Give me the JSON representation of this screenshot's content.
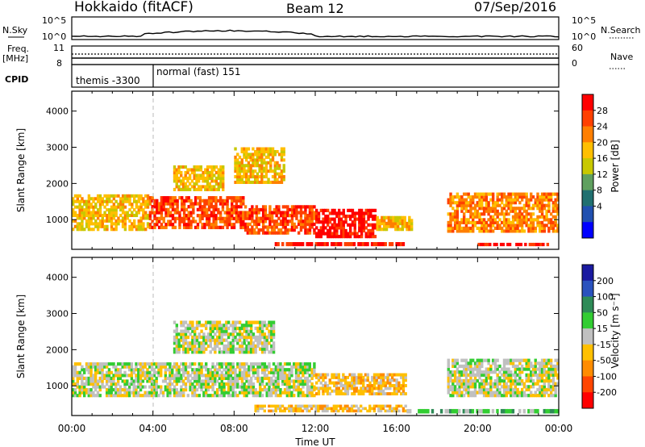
{
  "header": {
    "station": "Hokkaido (fitACF)",
    "beam": "Beam 12",
    "date": "07/Sep/2016"
  },
  "upper_panels": {
    "nsky_label": "N.Sky",
    "nsearch_label": "N.Search",
    "noise_ticks": [
      "10^5",
      "10^0"
    ],
    "freq_label_top": "Freq.",
    "freq_label_bottom": "[MHz]",
    "freq_ticks": [
      "11",
      "8"
    ],
    "nave_label": "Nave",
    "nave_ticks": [
      "60",
      "0"
    ],
    "cpid_label": "CPID",
    "cpid_segments": [
      "themis -3300",
      "normal (fast) 151"
    ]
  },
  "colorbars": {
    "power": {
      "label": "Power [dB]",
      "ticks": [
        "28",
        "24",
        "20",
        "16",
        "12",
        "8",
        "4"
      ],
      "colors": [
        "#ff0000",
        "#ff4000",
        "#ff7f00",
        "#ffbf00",
        "#c8c800",
        "#5fa05f",
        "#207070",
        "#2050b0",
        "#0000ff"
      ]
    },
    "velocity": {
      "label": "Velocity [m s⁻¹]",
      "ticks": [
        "200",
        "100",
        "50",
        "15",
        "-15",
        "-50",
        "-100",
        "-200"
      ],
      "colors": [
        "#1a1aa0",
        "#2a52be",
        "#2e8b57",
        "#32cd32",
        "#c0c0c0",
        "#ffc000",
        "#ff8c00",
        "#ff4500",
        "#ff0000"
      ]
    }
  },
  "chart_data": [
    {
      "type": "heatmap",
      "panel": "power",
      "ylabel": "Slant Range [km]",
      "yticks": [
        "1000",
        "2000",
        "3000",
        "4000"
      ],
      "ylim": [
        180,
        4550
      ],
      "xlim": [
        "00:00",
        "24:00"
      ],
      "bands": [
        {
          "t0": 0,
          "t1": 3.8,
          "r0": 700,
          "r1": 1700,
          "level": 5
        },
        {
          "t0": 3.8,
          "t1": 8.5,
          "r0": 750,
          "r1": 1650,
          "level": 7
        },
        {
          "t0": 8.5,
          "t1": 12.0,
          "r0": 600,
          "r1": 1400,
          "level": 7
        },
        {
          "t0": 12.0,
          "t1": 15.0,
          "r0": 500,
          "r1": 1300,
          "level": 8
        },
        {
          "t0": 15.0,
          "t1": 16.8,
          "r0": 700,
          "r1": 1100,
          "level": 5
        },
        {
          "t0": 18.5,
          "t1": 24.0,
          "r0": 650,
          "r1": 1750,
          "level": 6
        },
        {
          "t0": 5.0,
          "t1": 7.5,
          "r0": 1800,
          "r1": 2500,
          "level": 5
        },
        {
          "t0": 8.0,
          "t1": 10.5,
          "r0": 2000,
          "r1": 3000,
          "level": 5
        },
        {
          "t0": 10.0,
          "t1": 16.5,
          "r0": 280,
          "r1": 380,
          "level": 8
        },
        {
          "t0": 20.0,
          "t1": 23.5,
          "r0": 280,
          "r1": 360,
          "level": 8
        }
      ]
    },
    {
      "type": "heatmap",
      "panel": "velocity",
      "ylabel": "Slant Range [km]",
      "yticks": [
        "1000",
        "2000",
        "3000",
        "4000"
      ],
      "ylim": [
        180,
        4550
      ],
      "xticks": [
        "00:00",
        "04:00",
        "08:00",
        "12:00",
        "16:00",
        "20:00",
        "00:00"
      ],
      "xlabel": "Time UT",
      "bands": [
        {
          "t0": 0,
          "t1": 12.0,
          "r0": 700,
          "r1": 1650,
          "level": 4
        },
        {
          "t0": 12.0,
          "t1": 16.5,
          "r0": 750,
          "r1": 1350,
          "level": 3
        },
        {
          "t0": 18.5,
          "t1": 24.0,
          "r0": 700,
          "r1": 1750,
          "level": 4
        },
        {
          "t0": 9.0,
          "t1": 16.5,
          "r0": 280,
          "r1": 480,
          "level": 3
        },
        {
          "t0": 16.5,
          "t1": 24.0,
          "r0": 250,
          "r1": 360,
          "level": 5
        },
        {
          "t0": 5.0,
          "t1": 10.0,
          "r0": 1900,
          "r1": 2800,
          "level": 4
        }
      ]
    }
  ]
}
